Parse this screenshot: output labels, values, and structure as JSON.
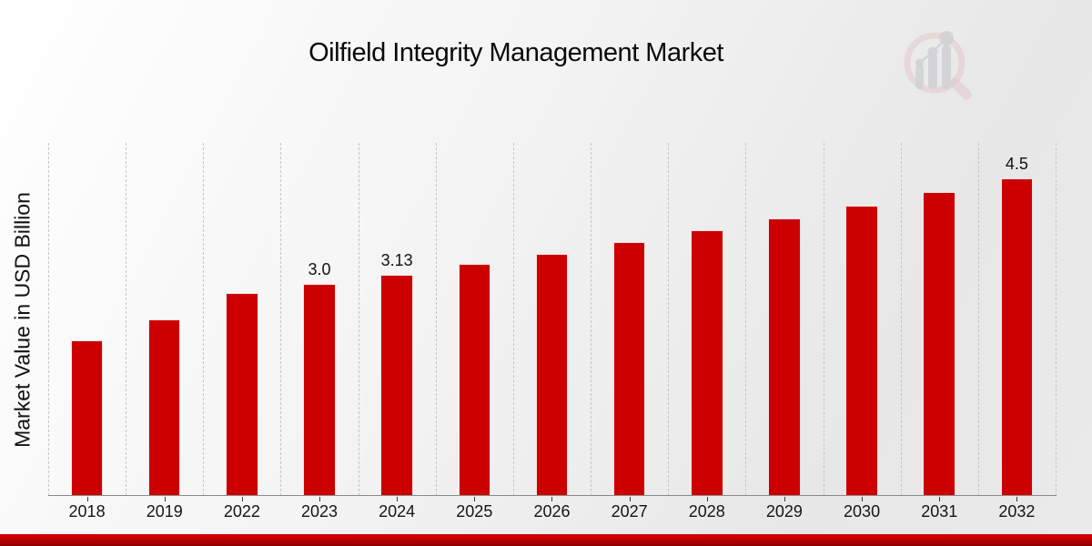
{
  "title": "Oilfield Integrity Management Market",
  "ylabel": "Market Value in USD Billion",
  "colors": {
    "bar": "#cc0000",
    "banner_top": "#d10000",
    "banner_bottom": "#8c0000",
    "gridline": "#c6c6c6",
    "axis": "#8a8a8a",
    "watermark_ring": "#d9a8ad",
    "watermark_bars": "#b5b6bd"
  },
  "icons": {
    "watermark": "magnifier-bar-chart-logo-icon"
  },
  "chart_data": {
    "type": "bar",
    "title": "Oilfield Integrity Management Market",
    "xlabel": "",
    "ylabel": "Market Value in USD Billion",
    "categories": [
      "2018",
      "2019",
      "2022",
      "2023",
      "2024",
      "2025",
      "2026",
      "2027",
      "2028",
      "2029",
      "2030",
      "2031",
      "2032"
    ],
    "values": [
      2.2,
      2.5,
      2.87,
      3.0,
      3.13,
      3.28,
      3.43,
      3.59,
      3.76,
      3.93,
      4.11,
      4.3,
      4.5
    ],
    "bar_labels": [
      "",
      "",
      "",
      "3.0",
      "3.13",
      "",
      "",
      "",
      "",
      "",
      "",
      "",
      "4.5"
    ],
    "ylim": [
      0,
      5
    ],
    "grid": "vertical-dashed",
    "legend": "none",
    "bar_color": "#cc0000"
  }
}
